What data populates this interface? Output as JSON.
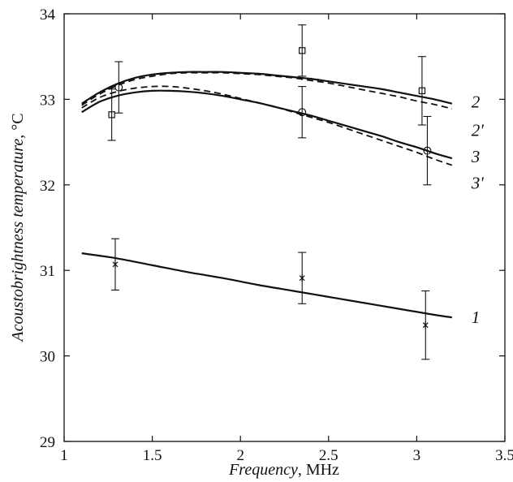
{
  "chart_data": {
    "type": "line",
    "xlabel_italic": "Frequency",
    "xlabel_unit": ", MHz",
    "ylabel_italic": "Acoustobrightness temperature",
    "ylabel_unit": ", °C",
    "xlim": [
      1,
      3.5
    ],
    "ylim": [
      29,
      34
    ],
    "x_ticks": [
      1,
      1.5,
      2,
      2.5,
      3,
      3.5
    ],
    "x_tick_labels": [
      "1",
      "1.5",
      "2",
      "2.5",
      "3",
      "3.5"
    ],
    "y_ticks": [
      29,
      30,
      31,
      32,
      33,
      34
    ],
    "y_tick_labels": [
      "29",
      "30",
      "31",
      "32",
      "33",
      "34"
    ],
    "grid": false,
    "series": [
      {
        "name": "2",
        "style": "solid",
        "x": [
          1.1,
          1.2,
          1.3,
          1.4,
          1.5,
          1.6,
          1.7,
          1.8,
          1.9,
          2.0,
          2.1,
          2.2,
          2.3,
          2.4,
          2.5,
          2.6,
          2.7,
          2.8,
          2.9,
          3.0,
          3.1,
          3.2
        ],
        "y": [
          32.95,
          33.08,
          33.18,
          33.25,
          33.29,
          33.31,
          33.32,
          33.32,
          33.32,
          33.31,
          33.3,
          33.28,
          33.26,
          33.24,
          33.21,
          33.18,
          33.15,
          33.12,
          33.08,
          33.04,
          33.0,
          32.95
        ]
      },
      {
        "name": "2'",
        "style": "dashed",
        "x": [
          1.1,
          1.2,
          1.3,
          1.4,
          1.5,
          1.6,
          1.7,
          1.8,
          1.9,
          2.0,
          2.1,
          2.2,
          2.3,
          2.4,
          2.5,
          2.6,
          2.7,
          2.8,
          2.9,
          3.0,
          3.1,
          3.2
        ],
        "y": [
          32.93,
          33.06,
          33.16,
          33.23,
          33.27,
          33.3,
          33.31,
          33.31,
          33.31,
          33.3,
          33.29,
          33.27,
          33.25,
          33.22,
          33.19,
          33.15,
          33.11,
          33.07,
          33.03,
          32.98,
          32.94,
          32.89
        ]
      },
      {
        "name": "3",
        "style": "solid",
        "x": [
          1.1,
          1.2,
          1.3,
          1.4,
          1.5,
          1.6,
          1.7,
          1.8,
          1.9,
          2.0,
          2.1,
          2.2,
          2.3,
          2.4,
          2.5,
          2.6,
          2.7,
          2.8,
          2.9,
          3.0,
          3.1,
          3.2
        ],
        "y": [
          32.85,
          32.97,
          33.04,
          33.08,
          33.1,
          33.1,
          33.09,
          33.07,
          33.04,
          33.0,
          32.96,
          32.91,
          32.86,
          32.81,
          32.75,
          32.69,
          32.63,
          32.57,
          32.5,
          32.44,
          32.37,
          32.31
        ]
      },
      {
        "name": "3'",
        "style": "dashed",
        "x": [
          1.1,
          1.2,
          1.3,
          1.4,
          1.5,
          1.6,
          1.7,
          1.8,
          1.9,
          2.0,
          2.1,
          2.2,
          2.3,
          2.4,
          2.5,
          2.6,
          2.7,
          2.8,
          2.9,
          3.0,
          3.1,
          3.2
        ],
        "y": [
          32.9,
          33.02,
          33.09,
          33.13,
          33.15,
          33.15,
          33.13,
          33.1,
          33.06,
          33.01,
          32.96,
          32.91,
          32.85,
          32.79,
          32.73,
          32.66,
          32.59,
          32.52,
          32.45,
          32.38,
          32.3,
          32.23
        ]
      },
      {
        "name": "1",
        "style": "solid",
        "x": [
          1.1,
          1.3,
          1.5,
          1.7,
          1.9,
          2.1,
          2.3,
          2.5,
          2.7,
          2.9,
          3.1,
          3.2
        ],
        "y": [
          31.2,
          31.14,
          31.06,
          30.98,
          30.91,
          30.83,
          30.76,
          30.69,
          30.62,
          30.55,
          30.48,
          30.45
        ]
      }
    ],
    "measurements": [
      {
        "series": "2",
        "marker": "square",
        "x": [
          1.27,
          2.35,
          3.03
        ],
        "y": [
          32.82,
          33.57,
          33.1
        ],
        "err": [
          0.3,
          0.3,
          0.4
        ]
      },
      {
        "series": "3",
        "marker": "circle",
        "x": [
          1.31,
          2.35,
          3.06
        ],
        "y": [
          33.14,
          32.85,
          32.4
        ],
        "err": [
          0.3,
          0.3,
          0.4
        ]
      },
      {
        "series": "1",
        "marker": "asterisk",
        "x": [
          1.29,
          2.35,
          3.05
        ],
        "y": [
          31.07,
          30.91,
          30.36
        ],
        "err": [
          0.3,
          0.3,
          0.4
        ]
      }
    ],
    "curve_labels": [
      {
        "text": "2",
        "x": 3.31,
        "y": 32.97
      },
      {
        "text": "2'",
        "x": 3.31,
        "y": 32.64
      },
      {
        "text": "3",
        "x": 3.31,
        "y": 32.33
      },
      {
        "text": "3'",
        "x": 3.31,
        "y": 32.02
      },
      {
        "text": "1",
        "x": 3.31,
        "y": 30.45
      }
    ]
  }
}
